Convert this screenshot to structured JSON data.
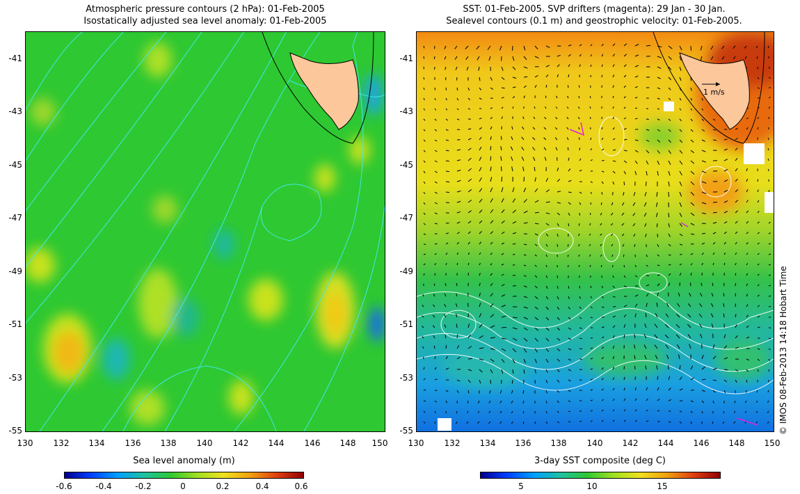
{
  "left_panel": {
    "title_line1": "Atmospheric pressure contours (2 hPa): 01-Feb-2005",
    "title_line2": "Isostatically adjusted sea level anomaly: 01-Feb-2005",
    "colorbar_label": "Sea level anomaly (m)",
    "colorbar_ticks": [
      "-0.6",
      "-0.4",
      "-0.2",
      "0",
      "0.2",
      "0.4",
      "0.6"
    ]
  },
  "right_panel": {
    "title_line1": "SST: 01-Feb-2005. SVP drifters (magenta): 29 Jan - 30 Jan.",
    "title_line2": "Sealevel contours (0.1 m) and geostrophic velocity: 01-Feb-2005.",
    "colorbar_label": "3-day SST composite (deg C)",
    "colorbar_ticks": [
      "5",
      "10",
      "15"
    ],
    "velocity_scale_label": "1 m/s"
  },
  "axes": {
    "lat_ticks": [
      "-41",
      "-43",
      "-45",
      "-47",
      "-49",
      "-51",
      "-53",
      "-55"
    ],
    "lon_ticks": [
      "130",
      "132",
      "134",
      "136",
      "138",
      "140",
      "142",
      "144",
      "146",
      "148",
      "150"
    ]
  },
  "credit": "© IMOS 08-Feb-2013 14:18 Hobart Time",
  "colors": {
    "land": "#fbc79b",
    "sla_green": "#2ec832",
    "pressure_contour": "#40e8e8",
    "sst_cold": "#1aa0ef",
    "sst_warm": "#ff7a10",
    "drifter": "#e020e0"
  }
}
